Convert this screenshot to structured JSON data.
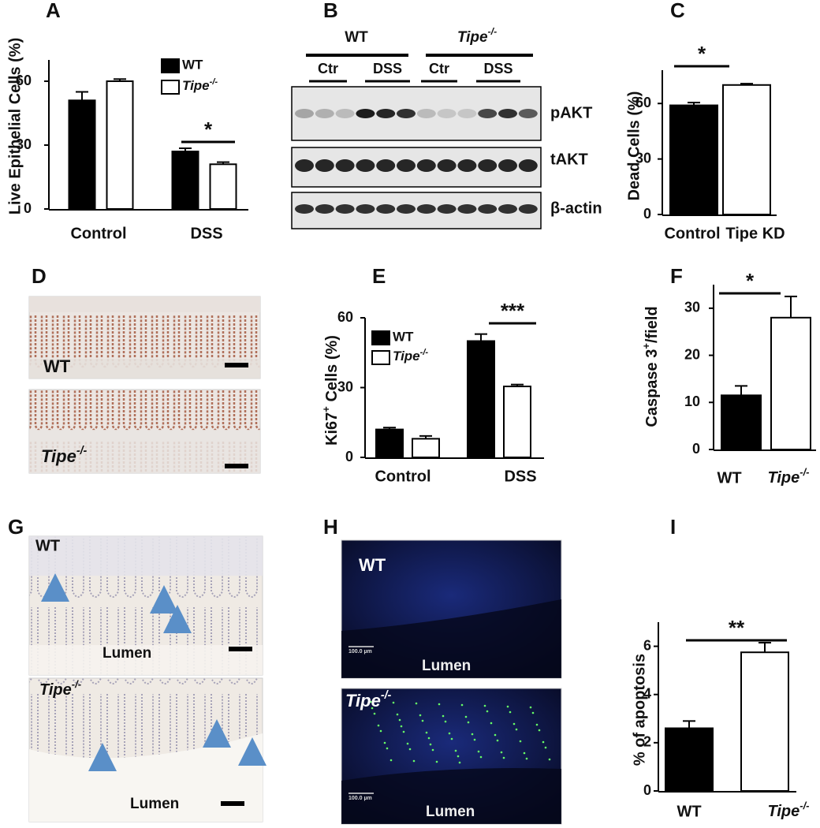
{
  "panel_labels": [
    "A",
    "B",
    "C",
    "D",
    "E",
    "F",
    "G",
    "H",
    "I"
  ],
  "chart_data": [
    {
      "type": "bar",
      "y_label": "Live Epithelial Cells (%)",
      "categories": [
        "Control",
        "DSS"
      ],
      "series": [
        {
          "name": "WT",
          "color": "#000000",
          "values": [
            51,
            27
          ],
          "errors": [
            4,
            1.5
          ]
        },
        {
          "name": [
            "Tipe",
            "-/-"
          ],
          "color": "#ffffff",
          "values": [
            60,
            21
          ],
          "errors": [
            1,
            1
          ]
        }
      ],
      "ylim": [
        0,
        70
      ],
      "yticks": [
        0,
        30,
        60
      ],
      "significance": "*"
    },
    {
      "type": "bar",
      "y_label": "Dead Cells (%)",
      "categories": [
        "Control",
        "Tipe KD"
      ],
      "values": [
        59,
        70
      ],
      "errors": [
        1.5,
        0.7
      ],
      "colors": [
        "#000000",
        "#ffffff"
      ],
      "ylim": [
        0,
        78
      ],
      "yticks": [
        0,
        30,
        60
      ],
      "significance": "*"
    },
    {
      "type": "bar",
      "y_label": [
        "Ki67",
        "+",
        " Cells (%)"
      ],
      "categories": [
        "Control",
        "DSS"
      ],
      "series": [
        {
          "name": "WT",
          "color": "#000000",
          "values": [
            12,
            50
          ],
          "errors": [
            0.8,
            3
          ]
        },
        {
          "name": [
            "Tipe",
            "-/-"
          ],
          "color": "#ffffff",
          "values": [
            8,
            30.5
          ],
          "errors": [
            1.2,
            0.8
          ]
        }
      ],
      "ylim": [
        0,
        60
      ],
      "yticks": [
        0,
        30,
        60
      ],
      "significance": "***"
    },
    {
      "type": "bar",
      "y_label": [
        "Caspase 3",
        "+",
        "/field"
      ],
      "categories": [
        "WT",
        [
          "Tipe",
          "-/-"
        ]
      ],
      "values": [
        11.5,
        28
      ],
      "errors": [
        2,
        4.5
      ],
      "colors": [
        "#000000",
        "#ffffff"
      ],
      "ylim": [
        0,
        35
      ],
      "yticks": [
        0,
        10,
        20,
        30
      ],
      "significance": "*"
    },
    {
      "type": "bar",
      "y_label": "% of apoptosis",
      "categories": [
        "WT",
        [
          "Tipe",
          "-/-"
        ]
      ],
      "values": [
        2.6,
        5.75
      ],
      "errors": [
        0.3,
        0.4
      ],
      "colors": [
        "#000000",
        "#ffffff"
      ],
      "ylim": [
        0,
        7
      ],
      "yticks": [
        0,
        2,
        4,
        6
      ],
      "significance": "**"
    }
  ],
  "blot": {
    "groups": [
      "WT",
      [
        "Tipe",
        "-/-"
      ]
    ],
    "conditions": [
      "Ctr",
      "DSS",
      "Ctr",
      "DSS"
    ],
    "proteins": [
      "pAKT",
      "tAKT",
      "β-actin"
    ]
  },
  "images": {
    "D": {
      "labels": [
        "WT",
        [
          "Tipe",
          "-/-"
        ]
      ]
    },
    "G": {
      "labels": [
        "WT",
        "Lumen",
        [
          "Tipe",
          "-/-"
        ],
        "Lumen"
      ]
    },
    "H": {
      "labels": [
        "WT",
        "Lumen",
        [
          "Tipe",
          "-/-"
        ],
        "Lumen"
      ],
      "scale_bars": [
        "100.0 µm",
        "100.0 µm"
      ]
    }
  }
}
